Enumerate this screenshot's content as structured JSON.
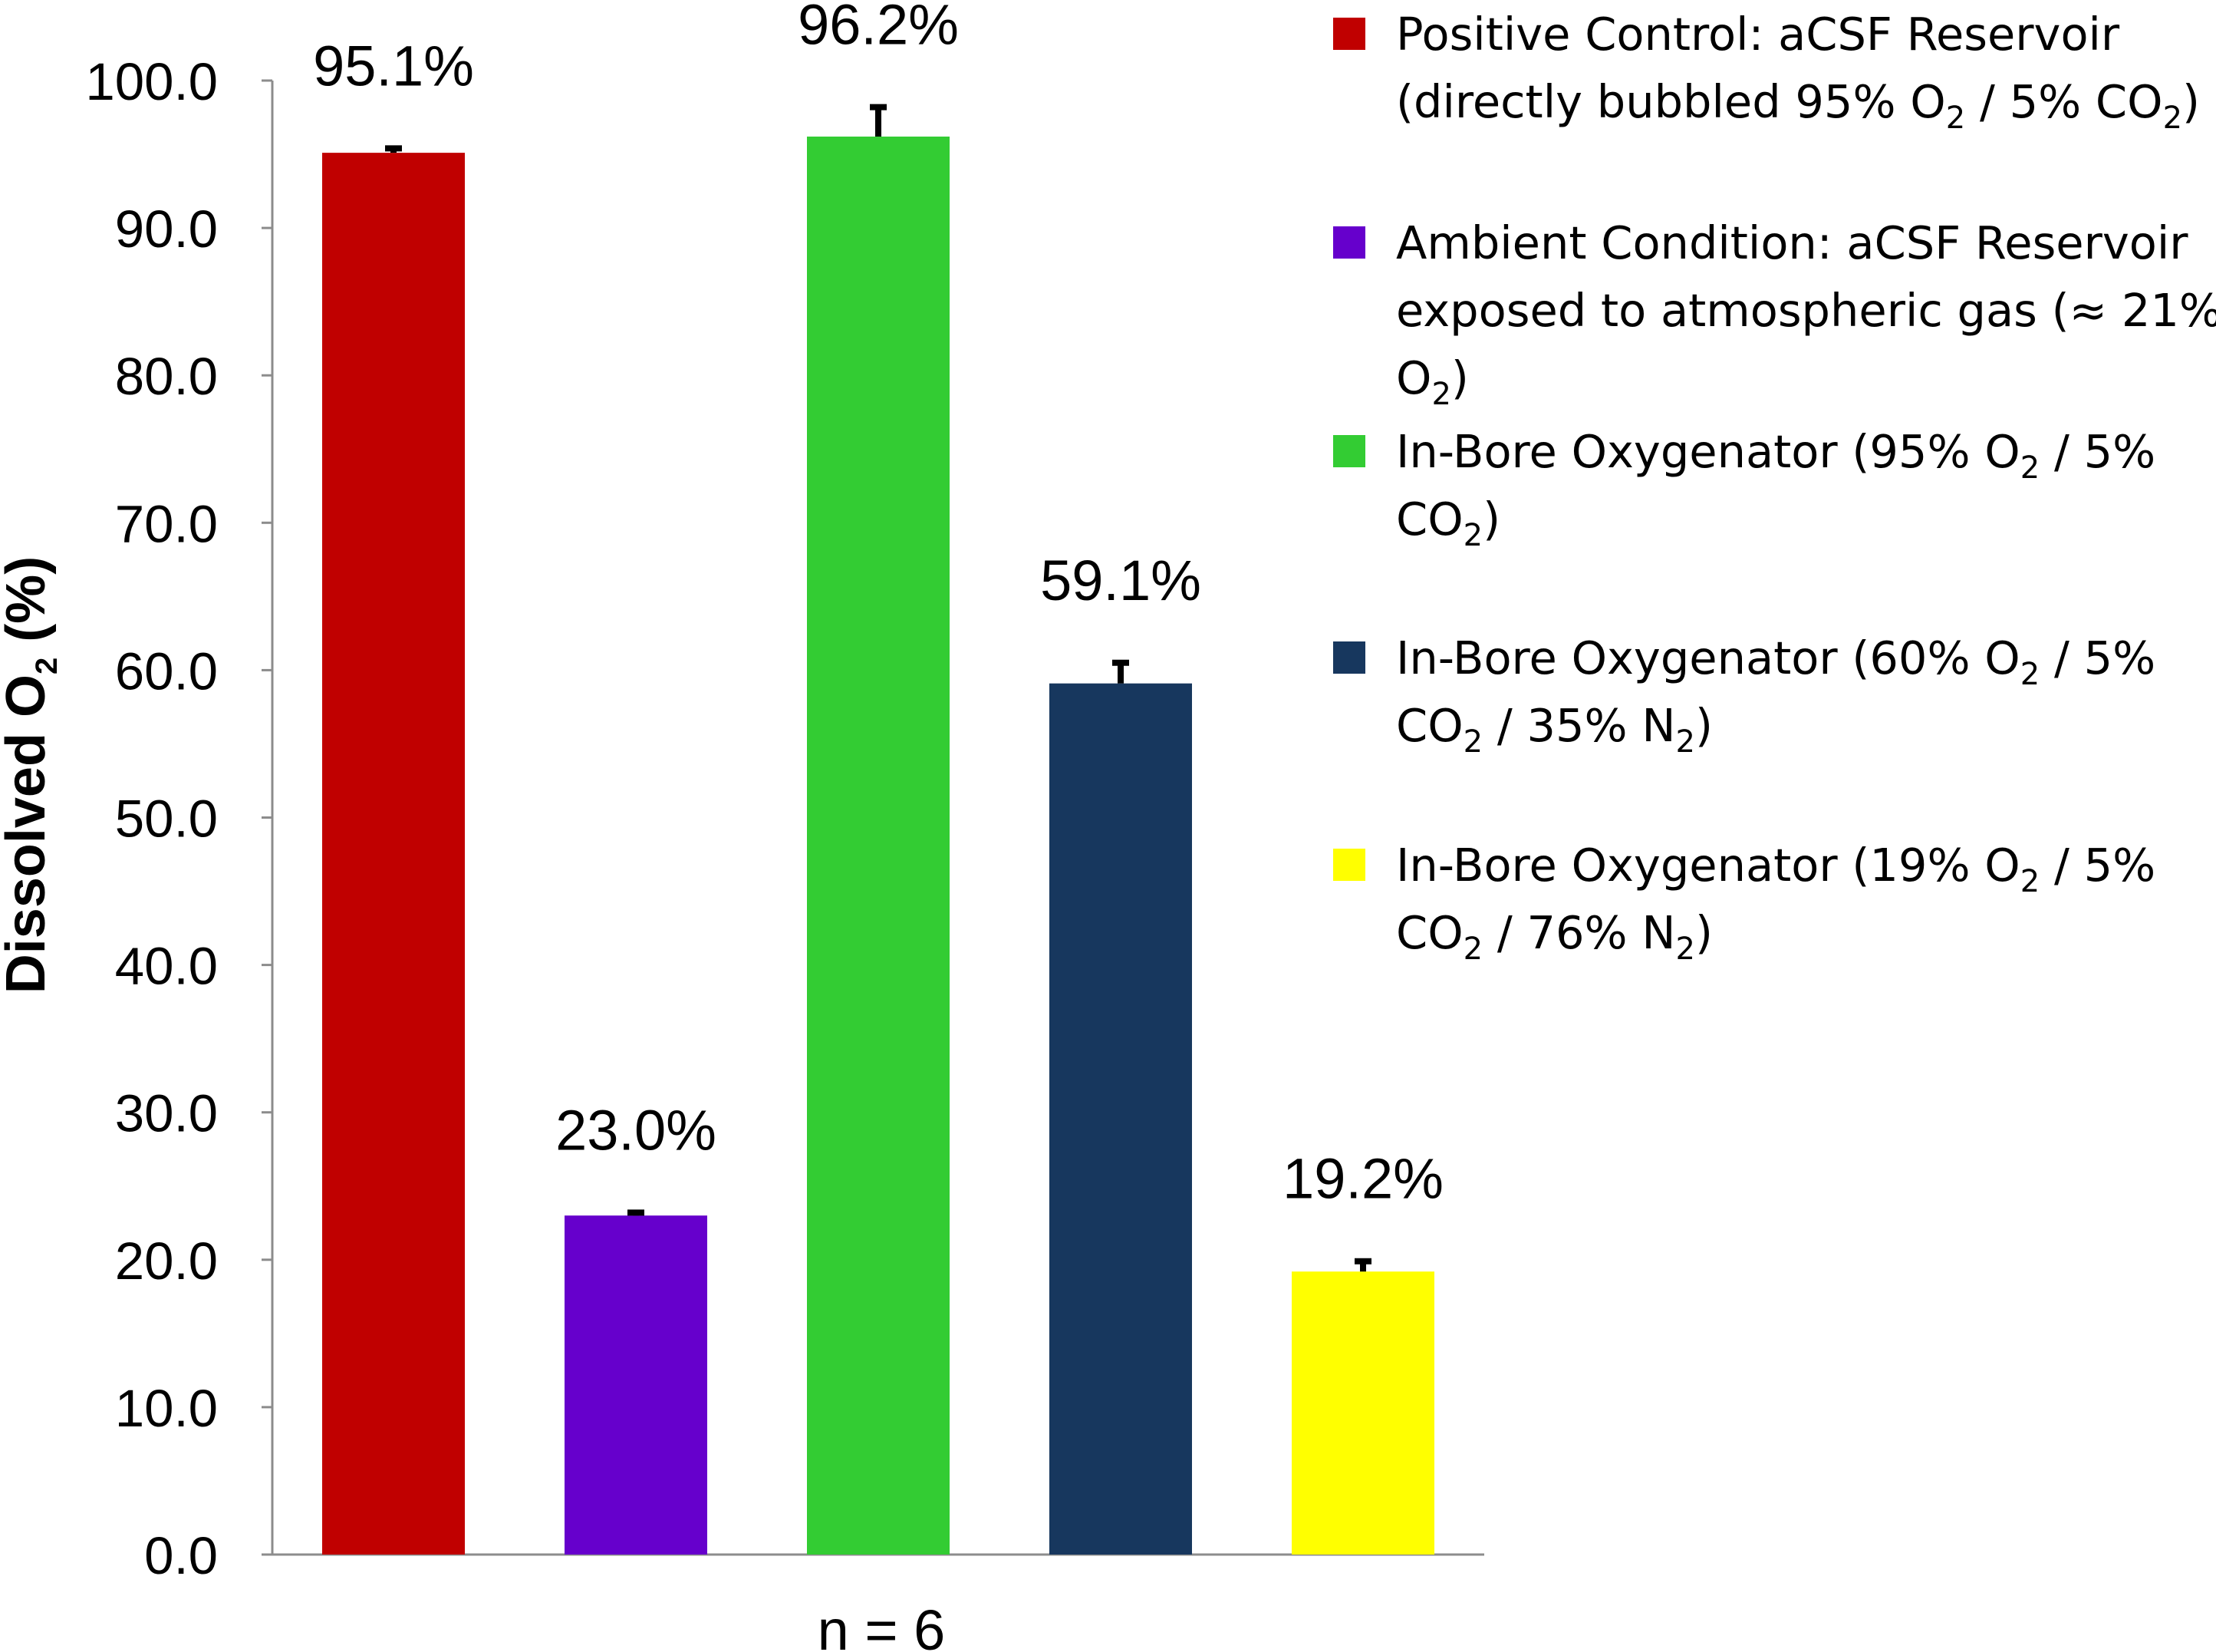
{
  "chart_data": {
    "type": "bar",
    "xlabel": "n = 6",
    "ylabel": {
      "base": "Dissolved O",
      "sub": "2",
      "rest": " (%)"
    },
    "ylim": [
      0,
      100
    ],
    "yticks": [
      "0.0",
      "10.0",
      "20.0",
      "30.0",
      "40.0",
      "50.0",
      "60.0",
      "70.0",
      "80.0",
      "90.0",
      "100.0"
    ],
    "grid": false,
    "legend_position": "right",
    "series": [
      {
        "name": "Positive Control: aCSF Reservoir (directly bubbled 95% O2 / 5% CO2)",
        "value": 95.1,
        "label": "95.1%",
        "error": 0.3,
        "color": "#C00000"
      },
      {
        "name": "Ambient Condition: aCSF Reservoir exposed to atmospheric gas (≈ 21% O2)",
        "value": 23.0,
        "label": "23.0%",
        "error": 0.2,
        "color": "#6600CC"
      },
      {
        "name": "In-Bore Oxygenator (95% O2 / 5% CO2)",
        "value": 96.2,
        "label": "96.2%",
        "error": 2.0,
        "color": "#33CC33"
      },
      {
        "name": "In-Bore Oxygenator (60% O2 / 5% CO2 / 35% N2)",
        "value": 59.1,
        "label": "59.1%",
        "error": 1.4,
        "color": "#17375E"
      },
      {
        "name": "In-Bore Oxygenator (19% O2 / 5% CO2 / 76% N2)",
        "value": 19.2,
        "label": "19.2%",
        "error": 0.7,
        "color": "#FFFF00"
      }
    ],
    "legend": [
      {
        "lines": [
          [
            {
              "t": "Positive Control: aCSF Reservoir"
            }
          ],
          [
            {
              "t": "(directly bubbled 95% O"
            },
            {
              "t": "2",
              "sub": true
            },
            {
              "t": " / 5% CO"
            },
            {
              "t": "2",
              "sub": true
            },
            {
              "t": ")"
            }
          ]
        ]
      },
      {
        "lines": [
          [
            {
              "t": "Ambient Condition: aCSF Reservoir"
            }
          ],
          [
            {
              "t": "exposed to atmospheric gas (≈ 21%"
            }
          ],
          [
            {
              "t": "O"
            },
            {
              "t": "2",
              "sub": true
            },
            {
              "t": ")"
            }
          ]
        ]
      },
      {
        "lines": [
          [
            {
              "t": "In-Bore Oxygenator (95% O"
            },
            {
              "t": "2",
              "sub": true
            },
            {
              "t": " / 5%"
            }
          ],
          [
            {
              "t": "CO"
            },
            {
              "t": "2",
              "sub": true
            },
            {
              "t": ")"
            }
          ]
        ]
      },
      {
        "lines": [
          [
            {
              "t": "In-Bore Oxygenator (60% O"
            },
            {
              "t": "2",
              "sub": true
            },
            {
              "t": " / 5%"
            }
          ],
          [
            {
              "t": "CO"
            },
            {
              "t": "2",
              "sub": true
            },
            {
              "t": " / 35% N"
            },
            {
              "t": "2",
              "sub": true
            },
            {
              "t": ")"
            }
          ]
        ]
      },
      {
        "lines": [
          [
            {
              "t": "In-Bore Oxygenator (19% O"
            },
            {
              "t": "2",
              "sub": true
            },
            {
              "t": " / 5%"
            }
          ],
          [
            {
              "t": "CO"
            },
            {
              "t": "2",
              "sub": true
            },
            {
              "t": " / 76% N"
            },
            {
              "t": "2",
              "sub": true
            },
            {
              "t": ")"
            }
          ]
        ]
      }
    ]
  }
}
